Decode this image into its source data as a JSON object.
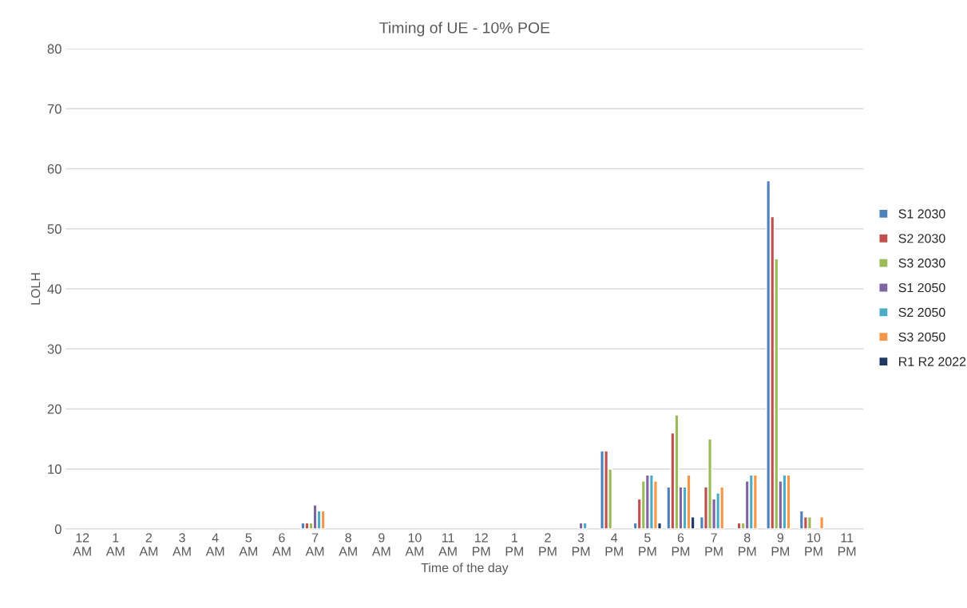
{
  "chart_data": {
    "type": "bar",
    "title": "Timing of UE - 10% POE",
    "xlabel": "Time of the day",
    "ylabel": "LOLH",
    "categories": [
      "12 AM",
      "1 AM",
      "2 AM",
      "3 AM",
      "4 AM",
      "5 AM",
      "6 AM",
      "7 AM",
      "8 AM",
      "9 AM",
      "10 AM",
      "11 AM",
      "12 PM",
      "1 PM",
      "2 PM",
      "3 PM",
      "4 PM",
      "5 PM",
      "6 PM",
      "7 PM",
      "8 PM",
      "9 PM",
      "10 PM",
      "11 PM"
    ],
    "series": [
      {
        "name": "S1 2030",
        "color": "#4f81bd",
        "values": [
          null,
          null,
          null,
          null,
          null,
          null,
          null,
          1,
          null,
          null,
          null,
          null,
          null,
          null,
          null,
          null,
          13,
          1,
          7,
          2,
          null,
          58,
          3,
          null
        ]
      },
      {
        "name": "S2 2030",
        "color": "#c0504d",
        "values": [
          null,
          null,
          null,
          null,
          null,
          null,
          null,
          1,
          null,
          null,
          null,
          null,
          null,
          null,
          null,
          null,
          13,
          5,
          16,
          7,
          1,
          52,
          2,
          null
        ]
      },
      {
        "name": "S3 2030",
        "color": "#9bbb59",
        "values": [
          null,
          null,
          null,
          null,
          null,
          null,
          null,
          1,
          null,
          null,
          null,
          null,
          null,
          null,
          null,
          null,
          10,
          8,
          19,
          15,
          1,
          45,
          2,
          null
        ]
      },
      {
        "name": "S1 2050",
        "color": "#8064a2",
        "values": [
          null,
          null,
          null,
          null,
          null,
          null,
          null,
          4,
          null,
          null,
          null,
          null,
          null,
          null,
          null,
          1,
          null,
          9,
          7,
          5,
          8,
          8,
          null,
          null
        ]
      },
      {
        "name": "S2 2050",
        "color": "#4bacc6",
        "values": [
          null,
          null,
          null,
          null,
          null,
          null,
          null,
          3,
          null,
          null,
          null,
          null,
          null,
          null,
          null,
          1,
          null,
          9,
          7,
          6,
          9,
          9,
          null,
          null
        ]
      },
      {
        "name": "S3 2050",
        "color": "#f79646",
        "values": [
          null,
          null,
          null,
          null,
          null,
          null,
          null,
          3,
          null,
          null,
          null,
          null,
          null,
          null,
          null,
          null,
          null,
          8,
          9,
          7,
          9,
          9,
          2,
          null
        ]
      },
      {
        "name": "R1 R2 2022",
        "color": "#1f3864",
        "values": [
          null,
          null,
          null,
          null,
          null,
          null,
          null,
          null,
          null,
          null,
          null,
          null,
          null,
          null,
          null,
          null,
          null,
          1,
          2,
          null,
          null,
          null,
          null,
          null
        ]
      }
    ],
    "ylim": [
      0,
      80
    ],
    "yticks": [
      0,
      10,
      20,
      30,
      40,
      50,
      60,
      70,
      80
    ],
    "grid": "y",
    "legend": "right"
  }
}
